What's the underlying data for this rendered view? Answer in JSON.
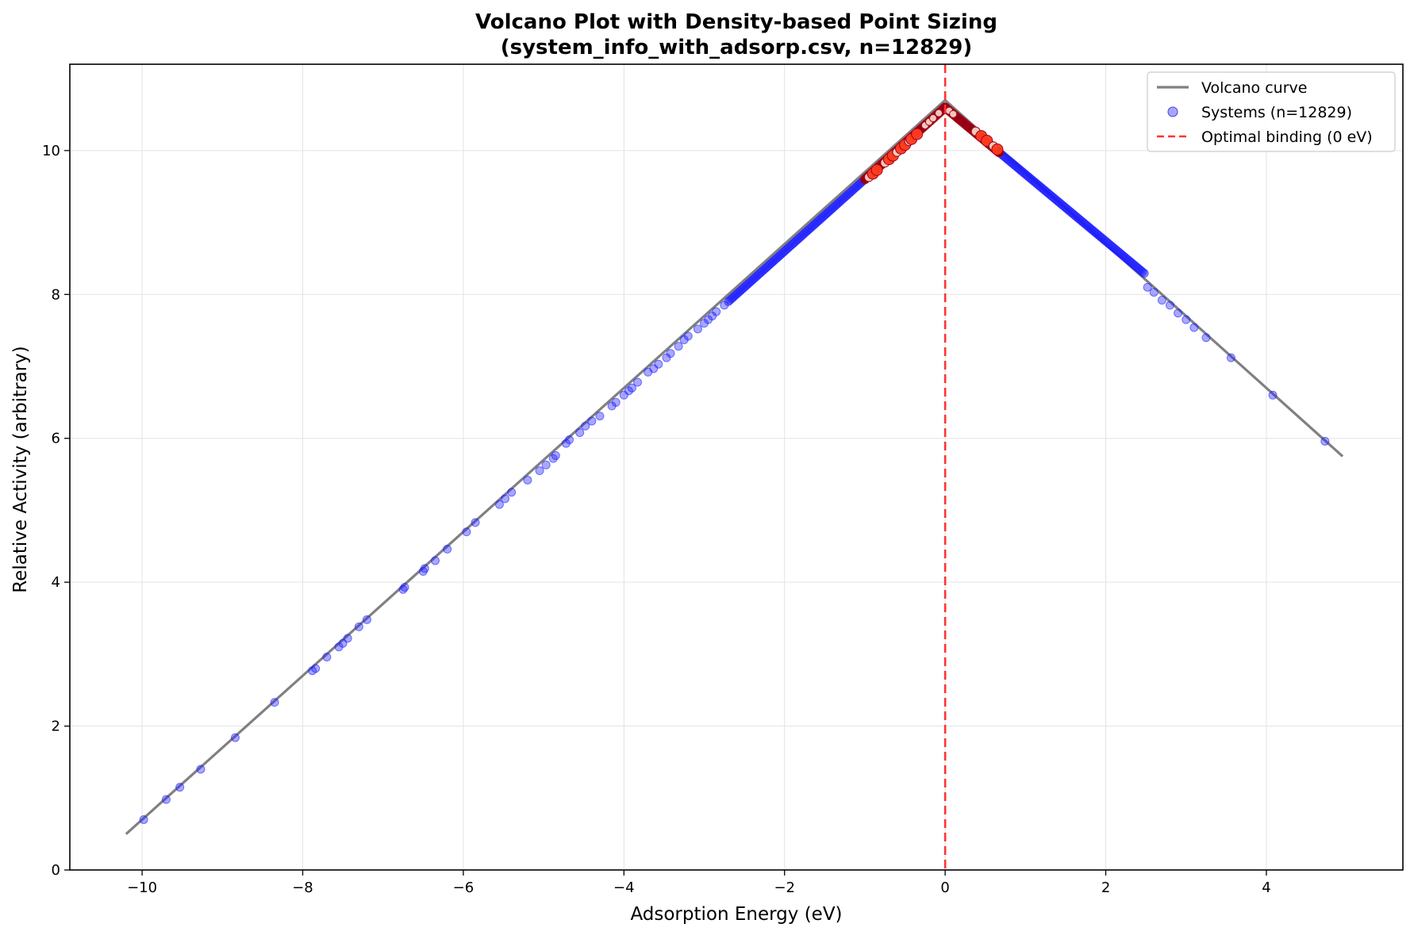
{
  "chart_data": {
    "type": "scatter",
    "title": "Volcano Plot with Density-based Point Sizing",
    "subtitle": "(system_info_with_adsorp.csv, n=12829)",
    "xlabel": "Adsorption Energy (eV)",
    "ylabel": "Relative Activity (arbitrary)",
    "xlim": [
      -10.9,
      5.7
    ],
    "ylim": [
      0,
      11.2
    ],
    "xticks": [
      -10,
      -8,
      -6,
      -4,
      -2,
      0,
      2,
      4
    ],
    "xtick_labels": [
      "−10",
      "−8",
      "−6",
      "−4",
      "−2",
      "0",
      "2",
      "4"
    ],
    "yticks": [
      0,
      2,
      4,
      6,
      8,
      10
    ],
    "ytick_labels": [
      "0",
      "2",
      "4",
      "6",
      "8",
      "10"
    ],
    "grid": true,
    "legend_position": "top-right",
    "legend": [
      {
        "label": "Volcano curve",
        "kind": "line",
        "color": "#808080"
      },
      {
        "label": "Systems (n=12829)",
        "kind": "marker",
        "color": "#6b6bf5"
      },
      {
        "label": "Optimal binding (0 eV)",
        "kind": "dashed",
        "color": "#ff3333"
      }
    ],
    "volcano_curve": {
      "color": "#808080",
      "points": [
        [
          -10.2,
          0.5
        ],
        [
          0.0,
          10.7
        ],
        [
          4.95,
          5.75
        ]
      ]
    },
    "optimal_binding": {
      "x": 0,
      "color": "#ff3333"
    },
    "series": [
      {
        "name": "Systems (n=12829)",
        "colors": {
          "low_density": "#1a1aff",
          "medium_density": "#ff3b1f",
          "high_density": "#7a0000",
          "outline": "#a0001a",
          "light": "#f7d3c4"
        },
        "left_branch": {
          "slope": 1.0,
          "peak_y": 10.6
        },
        "right_branch": {
          "slope": -0.93,
          "peak_y": 10.6
        },
        "sparse_points": [
          [
            -9.98,
            0.7
          ],
          [
            -9.7,
            0.98
          ],
          [
            -9.53,
            1.15
          ],
          [
            -9.27,
            1.4
          ],
          [
            -8.84,
            1.84
          ],
          [
            -8.35,
            2.33
          ],
          [
            -7.88,
            2.77
          ],
          [
            -7.84,
            2.8
          ],
          [
            -7.7,
            2.96
          ],
          [
            -7.55,
            3.1
          ],
          [
            -7.5,
            3.15
          ],
          [
            -7.44,
            3.22
          ],
          [
            -7.3,
            3.38
          ],
          [
            -7.2,
            3.48
          ],
          [
            -6.75,
            3.9
          ],
          [
            -6.73,
            3.93
          ],
          [
            -6.5,
            4.15
          ],
          [
            -6.48,
            4.19
          ],
          [
            -6.35,
            4.3
          ],
          [
            -6.2,
            4.46
          ],
          [
            -5.96,
            4.7
          ],
          [
            -5.85,
            4.83
          ],
          [
            -5.55,
            5.08
          ],
          [
            -5.48,
            5.16
          ],
          [
            -5.4,
            5.25
          ],
          [
            -5.2,
            5.42
          ],
          [
            -5.05,
            5.55
          ],
          [
            -4.97,
            5.63
          ],
          [
            -4.88,
            5.72
          ],
          [
            -4.85,
            5.76
          ],
          [
            -4.72,
            5.93
          ],
          [
            -4.68,
            5.98
          ],
          [
            -4.55,
            6.08
          ],
          [
            -4.48,
            6.17
          ],
          [
            -4.4,
            6.24
          ],
          [
            -4.3,
            6.31
          ],
          [
            -4.15,
            6.45
          ],
          [
            -4.1,
            6.5
          ],
          [
            -4.0,
            6.6
          ],
          [
            -3.94,
            6.66
          ],
          [
            -3.9,
            6.7
          ],
          [
            -3.83,
            6.78
          ],
          [
            -3.7,
            6.92
          ],
          [
            -3.63,
            6.97
          ],
          [
            -3.57,
            7.03
          ],
          [
            -3.47,
            7.12
          ],
          [
            -3.42,
            7.18
          ],
          [
            -3.32,
            7.28
          ],
          [
            -3.25,
            7.37
          ],
          [
            -3.2,
            7.42
          ],
          [
            -3.08,
            7.52
          ],
          [
            -3.0,
            7.6
          ],
          [
            -2.95,
            7.65
          ],
          [
            -2.9,
            7.7
          ],
          [
            -2.85,
            7.76
          ],
          [
            -2.75,
            7.85
          ],
          [
            3.56,
            7.12
          ],
          [
            4.08,
            6.6
          ],
          [
            4.73,
            5.96
          ],
          [
            3.25,
            7.4
          ],
          [
            3.1,
            7.54
          ],
          [
            3.0,
            7.65
          ],
          [
            2.9,
            7.74
          ],
          [
            2.8,
            7.85
          ],
          [
            2.7,
            7.92
          ],
          [
            2.6,
            8.03
          ],
          [
            2.52,
            8.1
          ]
        ],
        "dense_left": {
          "x_from": -2.7,
          "x_to": -1.0
        },
        "dense_right": {
          "x_from": 0.68,
          "x_to": 2.5
        },
        "peak_left": {
          "x_from": -1.0,
          "x_to": 0.0
        },
        "peak_right": {
          "x_from": 0.0,
          "x_to": 0.68
        }
      }
    ]
  }
}
